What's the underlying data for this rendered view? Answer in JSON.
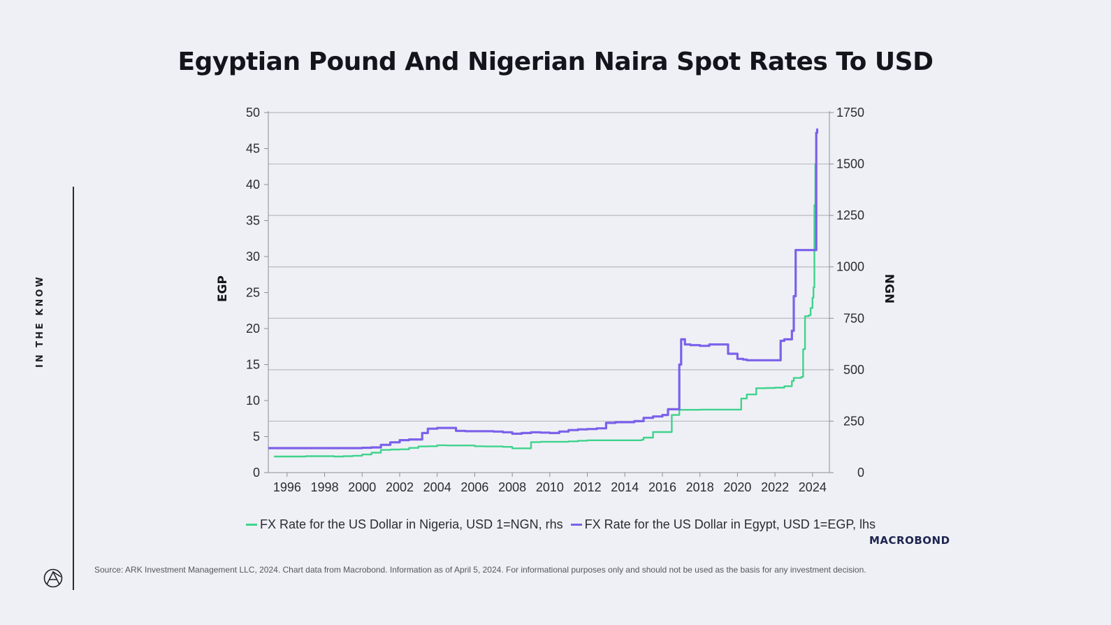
{
  "page": {
    "side_label": "IN THE KNOW",
    "brand_logo": "Macrobond",
    "source": "Source: ARK Investment Management LLC, 2024. Chart data from Macrobond. Information as of April 5, 2024. For informational purposes only and should not be used as the basis for any investment decision."
  },
  "chart_data": {
    "type": "line",
    "title": "Egyptian Pound And Nigerian Naira Spot Rates To USD",
    "ylabel": "EGP",
    "y2label": "NGN",
    "ylim": [
      0,
      50
    ],
    "y2lim": [
      0,
      1750
    ],
    "yticks": [
      0,
      5,
      10,
      15,
      20,
      25,
      30,
      35,
      40,
      45,
      50
    ],
    "y2ticks": [
      0,
      250,
      500,
      750,
      1000,
      1250,
      1500,
      1750
    ],
    "xlim": [
      1995.0,
      2024.9
    ],
    "xticks": [
      "1996",
      "1998",
      "2000",
      "2002",
      "2004",
      "2006",
      "2008",
      "2010",
      "2012",
      "2014",
      "2016",
      "2018",
      "2020",
      "2022",
      "2024"
    ],
    "grid": "horizontal",
    "legend_position": "bottom",
    "colors": {
      "nigeria": "#3fd38d",
      "egypt": "#7b61ea"
    },
    "series": [
      {
        "name": "FX Rate for the US Dollar in Nigeria, USD 1=NGN, rhs",
        "axis": "right",
        "x": [
          1995.3,
          1996.0,
          1997.0,
          1998.0,
          1998.5,
          1999.0,
          1999.5,
          2000.0,
          2000.5,
          2001.0,
          2001.5,
          2002.0,
          2002.5,
          2003.0,
          2003.5,
          2004.0,
          2004.5,
          2005.0,
          2005.5,
          2006.0,
          2006.5,
          2007.0,
          2007.5,
          2008.0,
          2008.5,
          2008.9,
          2009.0,
          2009.5,
          2010.0,
          2010.5,
          2011.0,
          2011.5,
          2012.0,
          2012.5,
          2013.0,
          2013.5,
          2014.0,
          2014.5,
          2014.9,
          2015.0,
          2015.5,
          2016.0,
          2016.4,
          2016.5,
          2016.9,
          2017.0,
          2017.5,
          2018.0,
          2018.5,
          2019.0,
          2019.5,
          2020.0,
          2020.2,
          2020.5,
          2020.9,
          2021.0,
          2021.5,
          2022.0,
          2022.5,
          2022.9,
          2023.0,
          2023.4,
          2023.5,
          2023.6,
          2023.8,
          2023.9,
          2024.0,
          2024.05,
          2024.1,
          2024.15,
          2024.2
        ],
        "values": [
          78,
          78,
          80,
          80,
          78,
          80,
          82,
          88,
          97,
          110,
          112,
          113,
          120,
          127,
          128,
          133,
          132,
          132,
          132,
          128,
          127,
          127,
          125,
          118,
          118,
          118,
          148,
          150,
          150,
          150,
          152,
          155,
          157,
          157,
          157,
          157,
          157,
          157,
          160,
          170,
          197,
          197,
          197,
          280,
          305,
          305,
          305,
          306,
          306,
          306,
          306,
          306,
          360,
          380,
          380,
          410,
          411,
          413,
          420,
          445,
          460,
          465,
          600,
          760,
          765,
          800,
          850,
          900,
          1300,
          1500,
          1580
        ]
      },
      {
        "name": "FX Rate for the US Dollar in Egypt, USD 1=EGP, lhs",
        "axis": "left",
        "x": [
          1995.0,
          1996.0,
          1997.0,
          1998.0,
          1999.0,
          2000.0,
          2000.5,
          2001.0,
          2001.5,
          2002.0,
          2002.5,
          2003.0,
          2003.2,
          2003.5,
          2004.0,
          2004.5,
          2004.9,
          2005.0,
          2005.5,
          2006.0,
          2006.5,
          2007.0,
          2007.5,
          2008.0,
          2008.5,
          2009.0,
          2009.5,
          2010.0,
          2010.5,
          2011.0,
          2011.5,
          2012.0,
          2012.5,
          2013.0,
          2013.5,
          2014.0,
          2014.5,
          2015.0,
          2015.5,
          2016.0,
          2016.3,
          2016.8,
          2016.9,
          2017.0,
          2017.2,
          2017.5,
          2018.0,
          2018.5,
          2019.0,
          2019.5,
          2020.0,
          2020.3,
          2020.5,
          2021.0,
          2021.5,
          2022.0,
          2022.3,
          2022.5,
          2022.9,
          2023.0,
          2023.1,
          2023.5,
          2024.0,
          2024.15,
          2024.2,
          2024.25
        ],
        "values": [
          3.4,
          3.4,
          3.4,
          3.4,
          3.4,
          3.45,
          3.5,
          3.85,
          4.2,
          4.5,
          4.6,
          4.6,
          5.5,
          6.1,
          6.2,
          6.2,
          6.2,
          5.8,
          5.75,
          5.75,
          5.75,
          5.7,
          5.6,
          5.4,
          5.5,
          5.6,
          5.55,
          5.5,
          5.7,
          5.9,
          6.0,
          6.05,
          6.15,
          6.9,
          7.0,
          7.0,
          7.15,
          7.6,
          7.8,
          8.0,
          8.8,
          8.8,
          15.0,
          18.5,
          17.8,
          17.7,
          17.6,
          17.8,
          17.8,
          16.5,
          15.8,
          15.7,
          15.6,
          15.6,
          15.6,
          15.6,
          18.3,
          18.5,
          19.7,
          24.5,
          30.9,
          30.9,
          30.9,
          30.9,
          47.2,
          47.8
        ]
      }
    ]
  }
}
